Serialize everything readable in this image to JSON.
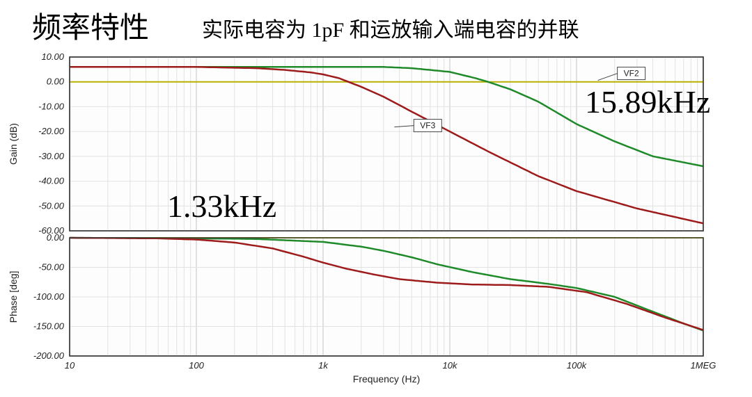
{
  "header": {
    "title": "频率特性",
    "subtitle": "实际电容为 1pF 和运放输入端电容的并联",
    "title_color": "#1a1a1a",
    "title_fontsize": 42,
    "subtitle_fontsize": 30
  },
  "annotations": {
    "f1": "1.33kHz",
    "f2": "15.89kHz",
    "font_color": "#1a1a1a",
    "font_size": 46
  },
  "chart": {
    "type": "bode",
    "background_color": "#fdfdfd",
    "border_color": "#3a3a3a",
    "grid_minor_color": "#e2e2e2",
    "grid_major_color": "#c2c2c2",
    "axis_label_color": "#222222",
    "tick_fontsize": 13,
    "label_fontsize": 14,
    "zero_line_color": "#b8b000",
    "zero_line_width": 2,
    "xaxis": {
      "label": "Frequency (Hz)",
      "scale": "log",
      "min": 10,
      "max": 1000000,
      "ticks": [
        10,
        100,
        1000,
        10000,
        100000,
        1000000
      ],
      "tick_labels": [
        "10",
        "100",
        "1k",
        "10k",
        "100k",
        "1MEG"
      ]
    },
    "gain_panel": {
      "ylabel": "Gain (dB)",
      "ymin": -60,
      "ymax": 10,
      "ystep": 10,
      "ytick_labels": [
        "10.00",
        "0.00",
        "-10.00",
        "-20.00",
        "-30.00",
        "-40.00",
        "-50.00",
        "-60.00"
      ]
    },
    "phase_panel": {
      "ylabel": "Phase [deg]",
      "ymin": -200,
      "ymax": 0,
      "ystep": 50,
      "ytick_labels": [
        "0.00",
        "-50.00",
        "-100.00",
        "-150.00",
        "-200.00"
      ]
    },
    "series": [
      {
        "name": "VF2",
        "label": "VF2",
        "color": "#1f8a2a",
        "width": 2.5,
        "gain_db": {
          "10": 6,
          "30": 6,
          "100": 6,
          "300": 6,
          "1000": 6,
          "3000": 6,
          "5000": 5.5,
          "8000": 4.5,
          "10000": 4,
          "15890": 1.5,
          "20000": 0,
          "30000": -3,
          "50000": -8,
          "100000": -17,
          "200000": -24,
          "400000": -30,
          "1000000": -34
        },
        "phase_deg": {
          "10": 0,
          "100": -1,
          "300": -2,
          "1000": -7,
          "2000": -15,
          "3000": -22,
          "5000": -33,
          "8000": -45,
          "15000": -58,
          "30000": -70,
          "60000": -78,
          "100000": -85,
          "200000": -100,
          "400000": -125,
          "700000": -145,
          "1000000": -157
        }
      },
      {
        "name": "VF3",
        "label": "VF3",
        "color": "#9e1b1b",
        "width": 2.5,
        "gain_db": {
          "10": 6,
          "30": 6,
          "100": 6,
          "300": 5.5,
          "500": 4.8,
          "800": 3.8,
          "1000": 3,
          "1330": 1.5,
          "2000": -2,
          "3000": -6,
          "5000": -12,
          "10000": -20,
          "20000": -28,
          "50000": -38,
          "100000": -44,
          "300000": -51,
          "1000000": -57
        },
        "phase_deg": {
          "10": 0,
          "50": -1,
          "100": -3,
          "200": -8,
          "400": -18,
          "700": -32,
          "1000": -42,
          "1500": -52,
          "2500": -62,
          "4000": -70,
          "8000": -76,
          "15000": -79,
          "30000": -80,
          "60000": -83,
          "120000": -92,
          "250000": -112,
          "500000": -135,
          "1000000": -156
        }
      }
    ],
    "legend_boxes": [
      {
        "label": "VF2",
        "x_hz": 210000,
        "y_db": 2
      },
      {
        "label": "VF3",
        "x_hz": 5200,
        "y_db": -19
      }
    ]
  }
}
